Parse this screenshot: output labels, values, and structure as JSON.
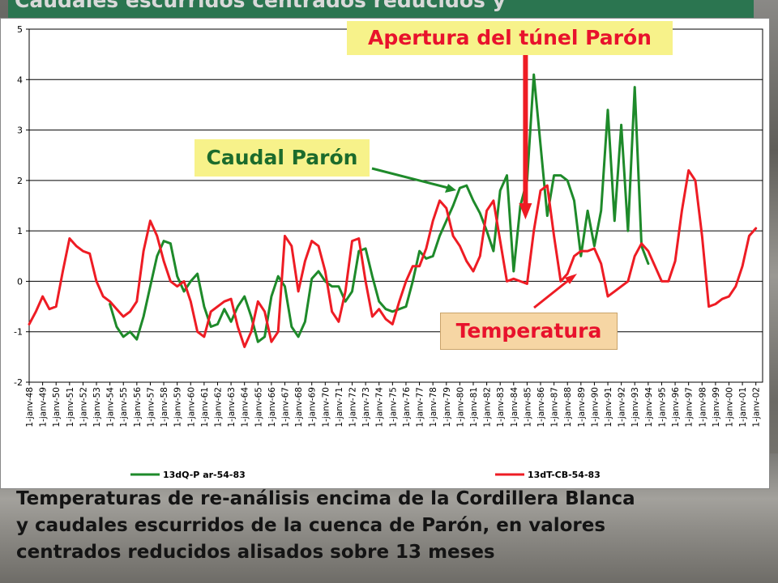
{
  "slide": {
    "title": "Caudales escurridos centrados reducidos y",
    "caption_lines": [
      "Temperaturas de re-análisis encima de la Cordillera Blanca",
      "y caudales escurridos de la cuenca de Parón, en valores",
      "centrados reducidos alisados sobre 13 meses"
    ]
  },
  "annotations": {
    "tunnel": "Apertura del túnel Parón",
    "caudal": "Caudal Parón",
    "temperature": "Temperatura"
  },
  "colors": {
    "caudal": "#1e8a2a",
    "temperature": "#ee1c24",
    "annotation_text": "#e8122c",
    "arrow_red": "#ee1c24",
    "arrow_green": "#1e8a2a"
  },
  "chart_data": {
    "type": "line",
    "title": "",
    "xlabel": "",
    "ylabel": "",
    "ylim": [
      -2,
      5
    ],
    "yticks": [
      "5",
      "4",
      "3",
      "2",
      "1",
      "0",
      "-1",
      "-2"
    ],
    "grid": true,
    "legend_position": "bottom",
    "x_ticks": [
      "1-janv-48",
      "1-janv-49",
      "1-janv-50",
      "1-janv-51",
      "1-janv-52",
      "1-janv-53",
      "1-janv-54",
      "1-janv-55",
      "1-janv-56",
      "1-janv-57",
      "1-janv-58",
      "1-janv-59",
      "1-janv-60",
      "1-janv-61",
      "1-janv-62",
      "1-janv-63",
      "1-janv-64",
      "1-janv-65",
      "1-janv-66",
      "1-janv-67",
      "1-janv-68",
      "1-janv-69",
      "1-janv-70",
      "1-janv-71",
      "1-janv-72",
      "1-janv-73",
      "1-janv-74",
      "1-janv-75",
      "1-janv-76",
      "1-janv-77",
      "1-janv-78",
      "1-janv-79",
      "1-janv-80",
      "1-janv-81",
      "1-janv-82",
      "1-janv-83",
      "1-janv-84",
      "1-janv-85",
      "1-janv-86",
      "1-janv-87",
      "1-janv-88",
      "1-janv-89",
      "1-janv-90",
      "1-janv-91",
      "1-janv-92",
      "1-janv-93",
      "1-janv-94",
      "1-janv-95",
      "1-janv-96",
      "1-janv-97",
      "1-janv-98",
      "1-janv-99",
      "1-janv-00",
      "1-janv-01",
      "1-janv-02"
    ],
    "x_range": [
      1948.0,
      2002.5
    ],
    "tunnel_year": 1985.0,
    "series": [
      {
        "name": "13dQ-P ar-54-83",
        "color": "#1e8a2a",
        "x": [
          1954.0,
          1954.5,
          1955.0,
          1955.5,
          1956.0,
          1956.5,
          1957.0,
          1957.5,
          1958.0,
          1958.5,
          1959.0,
          1959.5,
          1960.0,
          1960.5,
          1961.0,
          1961.5,
          1962.0,
          1962.5,
          1963.0,
          1963.5,
          1964.0,
          1964.5,
          1965.0,
          1965.5,
          1966.0,
          1966.5,
          1967.0,
          1967.5,
          1968.0,
          1968.5,
          1969.0,
          1969.5,
          1970.0,
          1970.5,
          1971.0,
          1971.5,
          1972.0,
          1972.5,
          1973.0,
          1973.5,
          1974.0,
          1974.5,
          1975.0,
          1975.5,
          1976.0,
          1976.5,
          1977.0,
          1977.5,
          1978.0,
          1978.5,
          1979.0,
          1979.5,
          1980.0,
          1980.5,
          1981.0,
          1981.5,
          1982.0,
          1982.5,
          1983.0,
          1983.5,
          1984.0,
          1984.5,
          1985.0,
          1985.5,
          1986.0,
          1986.5,
          1987.0,
          1987.5,
          1988.0,
          1988.5,
          1989.0,
          1989.5,
          1990.0,
          1990.5,
          1991.0,
          1991.5,
          1992.0,
          1992.5,
          1993.0,
          1993.5,
          1994.0
        ],
        "y": [
          -0.45,
          -0.9,
          -1.1,
          -1.0,
          -1.15,
          -0.7,
          -0.1,
          0.5,
          0.8,
          0.75,
          0.1,
          -0.2,
          0.0,
          0.15,
          -0.5,
          -0.9,
          -0.85,
          -0.55,
          -0.8,
          -0.5,
          -0.3,
          -0.7,
          -1.2,
          -1.1,
          -0.3,
          0.1,
          -0.1,
          -0.9,
          -1.1,
          -0.8,
          0.05,
          0.2,
          0.0,
          -0.1,
          -0.1,
          -0.4,
          -0.2,
          0.6,
          0.65,
          0.1,
          -0.4,
          -0.55,
          -0.6,
          -0.55,
          -0.5,
          0.0,
          0.6,
          0.45,
          0.5,
          0.9,
          1.2,
          1.5,
          1.85,
          1.9,
          1.6,
          1.35,
          1.0,
          0.6,
          1.8,
          2.1,
          0.2,
          1.5,
          2.0,
          4.1,
          2.7,
          1.3,
          2.1,
          2.1,
          2.0,
          1.6,
          0.5,
          1.4,
          0.7,
          1.4,
          3.4,
          1.2,
          3.1,
          1.0,
          3.85,
          0.7,
          0.35
        ]
      },
      {
        "name": "13dT-CB-54-83",
        "color": "#ee1c24",
        "x": [
          1948.0,
          1948.5,
          1949.0,
          1949.5,
          1950.0,
          1950.5,
          1951.0,
          1951.5,
          1952.0,
          1952.5,
          1953.0,
          1953.5,
          1954.0,
          1954.5,
          1955.0,
          1955.5,
          1956.0,
          1956.5,
          1957.0,
          1957.5,
          1958.0,
          1958.5,
          1959.0,
          1959.5,
          1960.0,
          1960.5,
          1961.0,
          1961.5,
          1962.0,
          1962.5,
          1963.0,
          1963.5,
          1964.0,
          1964.5,
          1965.0,
          1965.5,
          1966.0,
          1966.5,
          1967.0,
          1967.5,
          1968.0,
          1968.5,
          1969.0,
          1969.5,
          1970.0,
          1970.5,
          1971.0,
          1971.5,
          1972.0,
          1972.5,
          1973.0,
          1973.5,
          1974.0,
          1974.5,
          1975.0,
          1975.5,
          1976.0,
          1976.5,
          1977.0,
          1977.5,
          1978.0,
          1978.5,
          1979.0,
          1979.5,
          1980.0,
          1980.5,
          1981.0,
          1981.5,
          1982.0,
          1982.5,
          1983.0,
          1983.5,
          1984.0,
          1984.5,
          1985.0,
          1985.5,
          1986.0,
          1986.5,
          1987.0,
          1987.5,
          1988.0,
          1988.5,
          1989.0,
          1989.5,
          1990.0,
          1990.5,
          1991.0,
          1991.5,
          1992.0,
          1992.5,
          1993.0,
          1993.5,
          1994.0,
          1994.5,
          1995.0,
          1995.5,
          1996.0,
          1996.5,
          1997.0,
          1997.5,
          1998.0,
          1998.5,
          1999.0,
          1999.5,
          2000.0,
          2000.5,
          2001.0,
          2001.5,
          2002.0
        ],
        "y": [
          -0.85,
          -0.6,
          -0.3,
          -0.55,
          -0.5,
          0.2,
          0.85,
          0.7,
          0.6,
          0.55,
          0.0,
          -0.3,
          -0.4,
          -0.55,
          -0.7,
          -0.6,
          -0.4,
          0.6,
          1.2,
          0.9,
          0.4,
          0.0,
          -0.1,
          0.0,
          -0.4,
          -1.0,
          -1.1,
          -0.6,
          -0.5,
          -0.4,
          -0.35,
          -0.9,
          -1.3,
          -1.0,
          -0.4,
          -0.6,
          -1.2,
          -1.0,
          0.9,
          0.7,
          -0.2,
          0.4,
          0.8,
          0.7,
          0.2,
          -0.6,
          -0.8,
          -0.2,
          0.8,
          0.85,
          0.0,
          -0.7,
          -0.55,
          -0.75,
          -0.85,
          -0.4,
          0.0,
          0.3,
          0.3,
          0.65,
          1.2,
          1.6,
          1.45,
          0.9,
          0.7,
          0.4,
          0.2,
          0.5,
          1.4,
          1.6,
          0.8,
          0.0,
          0.05,
          0.0,
          -0.05,
          1.0,
          1.8,
          1.9,
          0.9,
          0.0,
          0.15,
          0.5,
          0.6,
          0.6,
          0.65,
          0.35,
          -0.3,
          -0.2,
          -0.1,
          0.0,
          0.5,
          0.75,
          0.6,
          0.3,
          0.0,
          0.0,
          0.4,
          1.4,
          2.2,
          2.0,
          0.9,
          -0.5,
          -0.45,
          -0.35,
          -0.3,
          -0.1,
          0.3,
          0.9,
          1.05
        ]
      }
    ]
  }
}
